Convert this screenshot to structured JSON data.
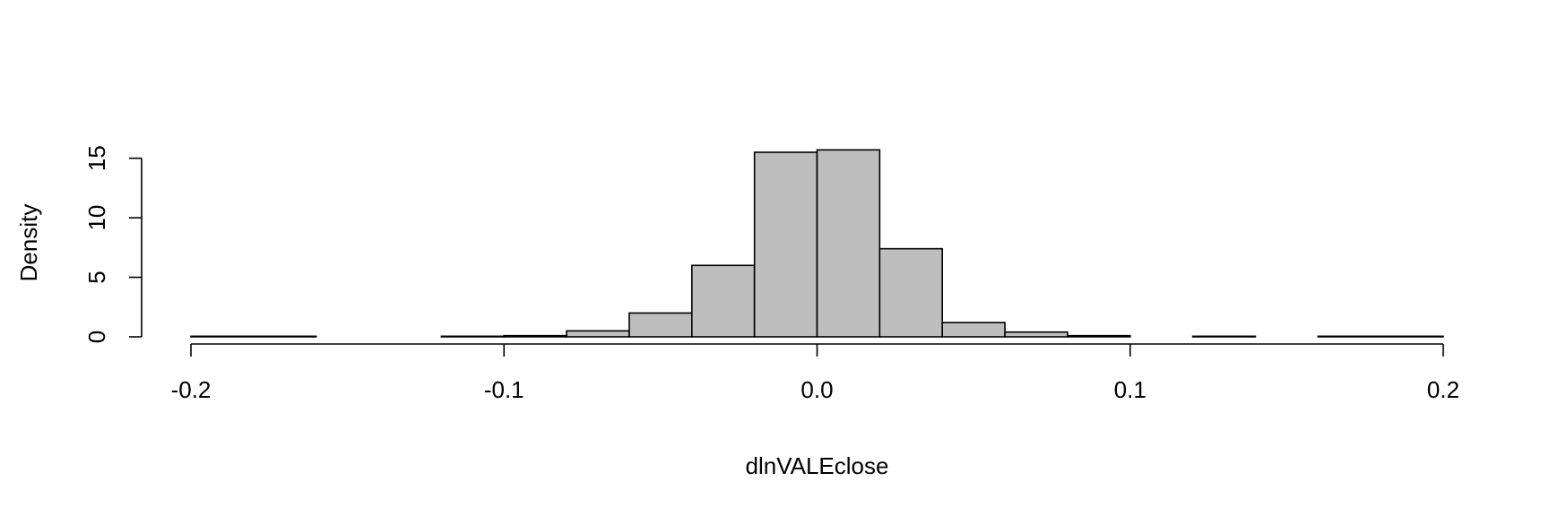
{
  "chart_data": {
    "type": "bar",
    "title": "",
    "xlabel": "dlnVALEclose",
    "ylabel": "Density",
    "xlim": [
      -0.2,
      0.2
    ],
    "ylim": [
      0,
      15.8
    ],
    "bins": [
      {
        "x0": -0.2,
        "x1": -0.16,
        "value": 0.05
      },
      {
        "x0": -0.16,
        "x1": -0.12,
        "value": 0.0
      },
      {
        "x0": -0.12,
        "x1": -0.1,
        "value": 0.05
      },
      {
        "x0": -0.1,
        "x1": -0.08,
        "value": 0.1
      },
      {
        "x0": -0.08,
        "x1": -0.06,
        "value": 0.5
      },
      {
        "x0": -0.06,
        "x1": -0.04,
        "value": 2.0
      },
      {
        "x0": -0.04,
        "x1": -0.02,
        "value": 6.0
      },
      {
        "x0": -0.02,
        "x1": 0.0,
        "value": 15.5
      },
      {
        "x0": 0.0,
        "x1": 0.02,
        "value": 15.7
      },
      {
        "x0": 0.02,
        "x1": 0.04,
        "value": 7.4
      },
      {
        "x0": 0.04,
        "x1": 0.06,
        "value": 1.2
      },
      {
        "x0": 0.06,
        "x1": 0.08,
        "value": 0.4
      },
      {
        "x0": 0.08,
        "x1": 0.1,
        "value": 0.1
      },
      {
        "x0": 0.1,
        "x1": 0.12,
        "value": 0.0
      },
      {
        "x0": 0.12,
        "x1": 0.14,
        "value": 0.05
      },
      {
        "x0": 0.14,
        "x1": 0.16,
        "value": 0.0
      },
      {
        "x0": 0.16,
        "x1": 0.2,
        "value": 0.05
      }
    ],
    "x_ticks": [
      {
        "value": -0.2,
        "label": "-0.2"
      },
      {
        "value": -0.1,
        "label": "-0.1"
      },
      {
        "value": 0.0,
        "label": "0.0"
      },
      {
        "value": 0.1,
        "label": "0.1"
      },
      {
        "value": 0.2,
        "label": "0.2"
      }
    ],
    "y_ticks": [
      {
        "value": 0,
        "label": "0"
      },
      {
        "value": 5,
        "label": "5"
      },
      {
        "value": 10,
        "label": "10"
      },
      {
        "value": 15,
        "label": "15"
      }
    ],
    "grid": false,
    "bar_fill": "#bebebe",
    "bar_stroke": "#000000"
  }
}
